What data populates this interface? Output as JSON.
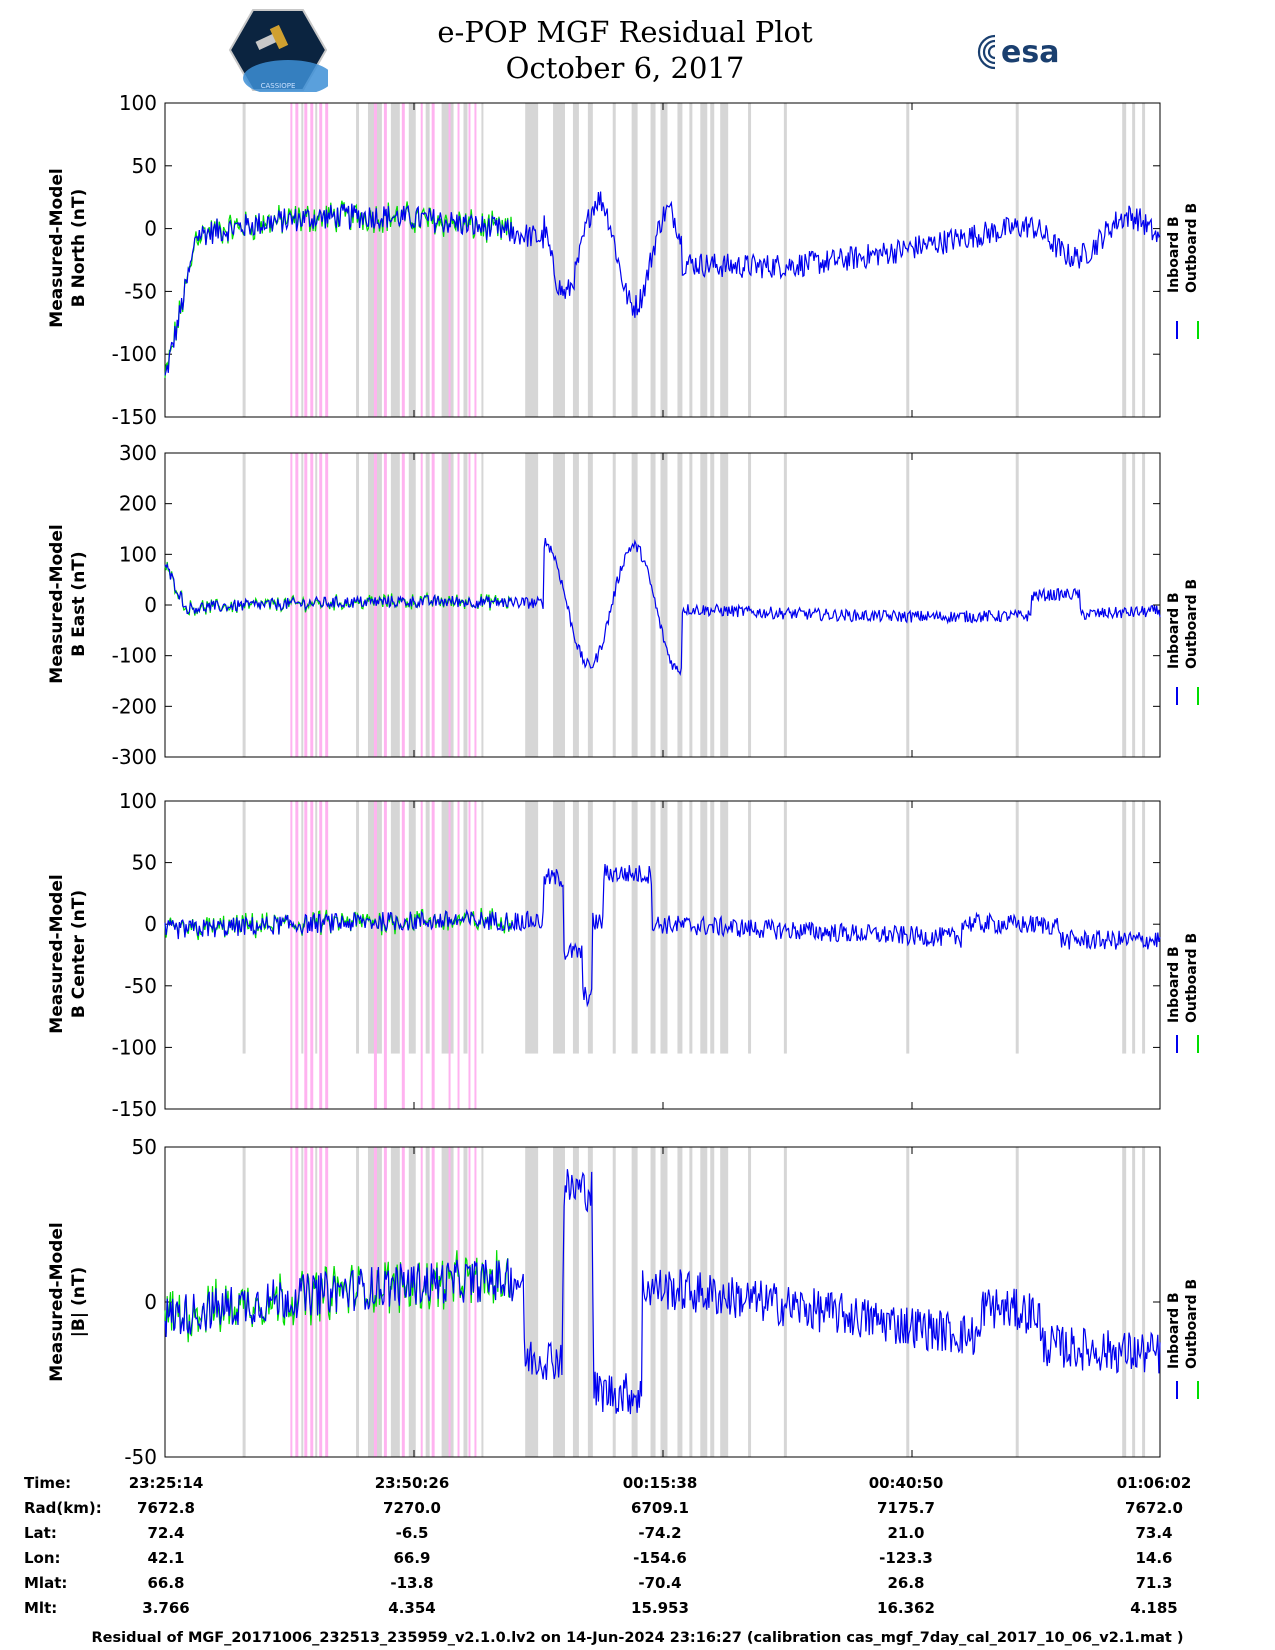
{
  "header": {
    "title_line1": "e-POP MGF Residual Plot",
    "title_line2": "October 6, 2017",
    "left_logo_text": "CASSIOPE",
    "right_logo_text": "esa"
  },
  "colors": {
    "inboard": "#0000ee",
    "outboard": "#00dd00",
    "gray_band": "#d6d6d6",
    "pink_band": "#ffb3f0"
  },
  "chart_data": [
    {
      "type": "line",
      "id": "b-north",
      "ylabel_line1": "Measured-Model",
      "ylabel_line2": "B North (nT)",
      "ylim": [
        -150,
        100
      ],
      "yticks": [
        100,
        50,
        0,
        -50,
        -100,
        -150
      ],
      "series": [
        {
          "name": "Inboard B"
        },
        {
          "name": "Outboard B"
        }
      ]
    },
    {
      "type": "line",
      "id": "b-east",
      "ylabel_line1": "Measured-Model",
      "ylabel_line2": "B East (nT)",
      "ylim": [
        -300,
        300
      ],
      "yticks": [
        300,
        200,
        100,
        0,
        -100,
        -200,
        -300
      ],
      "series": [
        {
          "name": "Inboard B"
        },
        {
          "name": "Outboard B"
        }
      ]
    },
    {
      "type": "line",
      "id": "b-center",
      "ylabel_line1": "Measured-Model",
      "ylabel_line2": "B Center (nT)",
      "ylim": [
        -150,
        100
      ],
      "yticks": [
        100,
        50,
        0,
        -50,
        -100,
        -150
      ],
      "series": [
        {
          "name": "Inboard B"
        },
        {
          "name": "Outboard B"
        }
      ]
    },
    {
      "type": "line",
      "id": "b-mag",
      "ylabel_line1": "Measured-Model",
      "ylabel_line2": "|B| (nT)",
      "ylim": [
        -50,
        50
      ],
      "yticks": [
        50,
        0,
        -50
      ],
      "series": [
        {
          "name": "Inboard B"
        },
        {
          "name": "Outboard B"
        }
      ]
    }
  ],
  "legend": {
    "inboard": "Inboard B",
    "outboard": "Outboard B"
  },
  "annotation": {
    "rows": [
      {
        "label": "Time:",
        "values": [
          "23:25:14",
          "23:50:26",
          "00:15:38",
          "00:40:50",
          "01:06:02"
        ]
      },
      {
        "label": "Rad(km):",
        "values": [
          "7672.8",
          "7270.0",
          "6709.1",
          "7175.7",
          "7672.0"
        ]
      },
      {
        "label": "Lat:",
        "values": [
          "72.4",
          "-6.5",
          "-74.2",
          "21.0",
          "73.4"
        ]
      },
      {
        "label": "Lon:",
        "values": [
          "42.1",
          "66.9",
          "-154.6",
          "-123.3",
          "14.6"
        ]
      },
      {
        "label": "Mlat:",
        "values": [
          "66.8",
          "-13.8",
          "-70.4",
          "26.8",
          "71.3"
        ]
      },
      {
        "label": "Mlt:",
        "values": [
          "3.766",
          "4.354",
          "15.953",
          "16.362",
          "4.185"
        ]
      }
    ]
  },
  "footer": "Residual of MGF_20171006_232513_235959_v2.1.0.lv2 on 14-Jun-2024 23:16:27 (calibration cas_mgf_7day_cal_2017_10_06_v2.1.mat )"
}
